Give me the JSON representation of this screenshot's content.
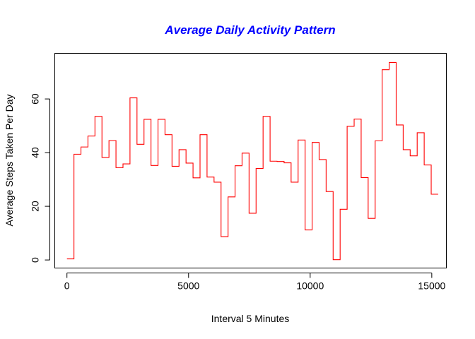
{
  "chart_data": {
    "type": "line",
    "line_style": "step",
    "title": "Average Daily Activity Pattern",
    "xlabel": "Interval 5 Minutes",
    "ylabel": "Average Steps Taken Per Day",
    "xlim": [
      -500,
      15600
    ],
    "ylim": [
      -3,
      77
    ],
    "x_ticks": [
      0,
      5000,
      10000,
      15000
    ],
    "x_tick_labels": [
      "0",
      "5000",
      "10000",
      "15000"
    ],
    "y_ticks": [
      0,
      20,
      40,
      60
    ],
    "y_tick_labels": [
      "0",
      "20",
      "40",
      "60"
    ],
    "grid": false,
    "legend": "none",
    "colors": {
      "title": "#0000ff",
      "series": "#ff0000",
      "axes": "#000000"
    },
    "series": [
      {
        "x": [
          0,
          288,
          576,
          864,
          1152,
          1440,
          1728,
          2016,
          2304,
          2592,
          2880,
          3168,
          3456,
          3744,
          4032,
          4320,
          4608,
          4896,
          5184,
          5472,
          5760,
          6048,
          6336,
          6624,
          6912,
          7200,
          7488,
          7776,
          8064,
          8352,
          8640,
          8928,
          9216,
          9504,
          9792,
          10080,
          10368,
          10656,
          10944,
          11232,
          11520,
          11808,
          12096,
          12384,
          12672,
          12960,
          13248,
          13536,
          13824,
          14112,
          14400,
          14688,
          14976,
          15264
        ],
        "y": [
          0.4,
          39.4,
          42.1,
          46.2,
          53.5,
          38.2,
          44.5,
          34.4,
          35.8,
          60.4,
          43.1,
          52.4,
          35.2,
          52.4,
          46.7,
          34.9,
          41.1,
          36.1,
          30.6,
          46.7,
          30.9,
          29.0,
          8.7,
          23.5,
          35.1,
          39.8,
          17.4,
          34.1,
          53.5,
          36.8,
          36.7,
          36.2,
          29.0,
          44.7,
          11.2,
          43.8,
          37.4,
          25.5,
          0.1,
          18.9,
          49.8,
          52.5,
          30.7,
          15.5,
          44.4,
          70.9,
          73.6,
          50.3,
          41.1,
          38.8,
          47.4,
          35.4,
          24.5,
          24.5
        ]
      }
    ]
  }
}
